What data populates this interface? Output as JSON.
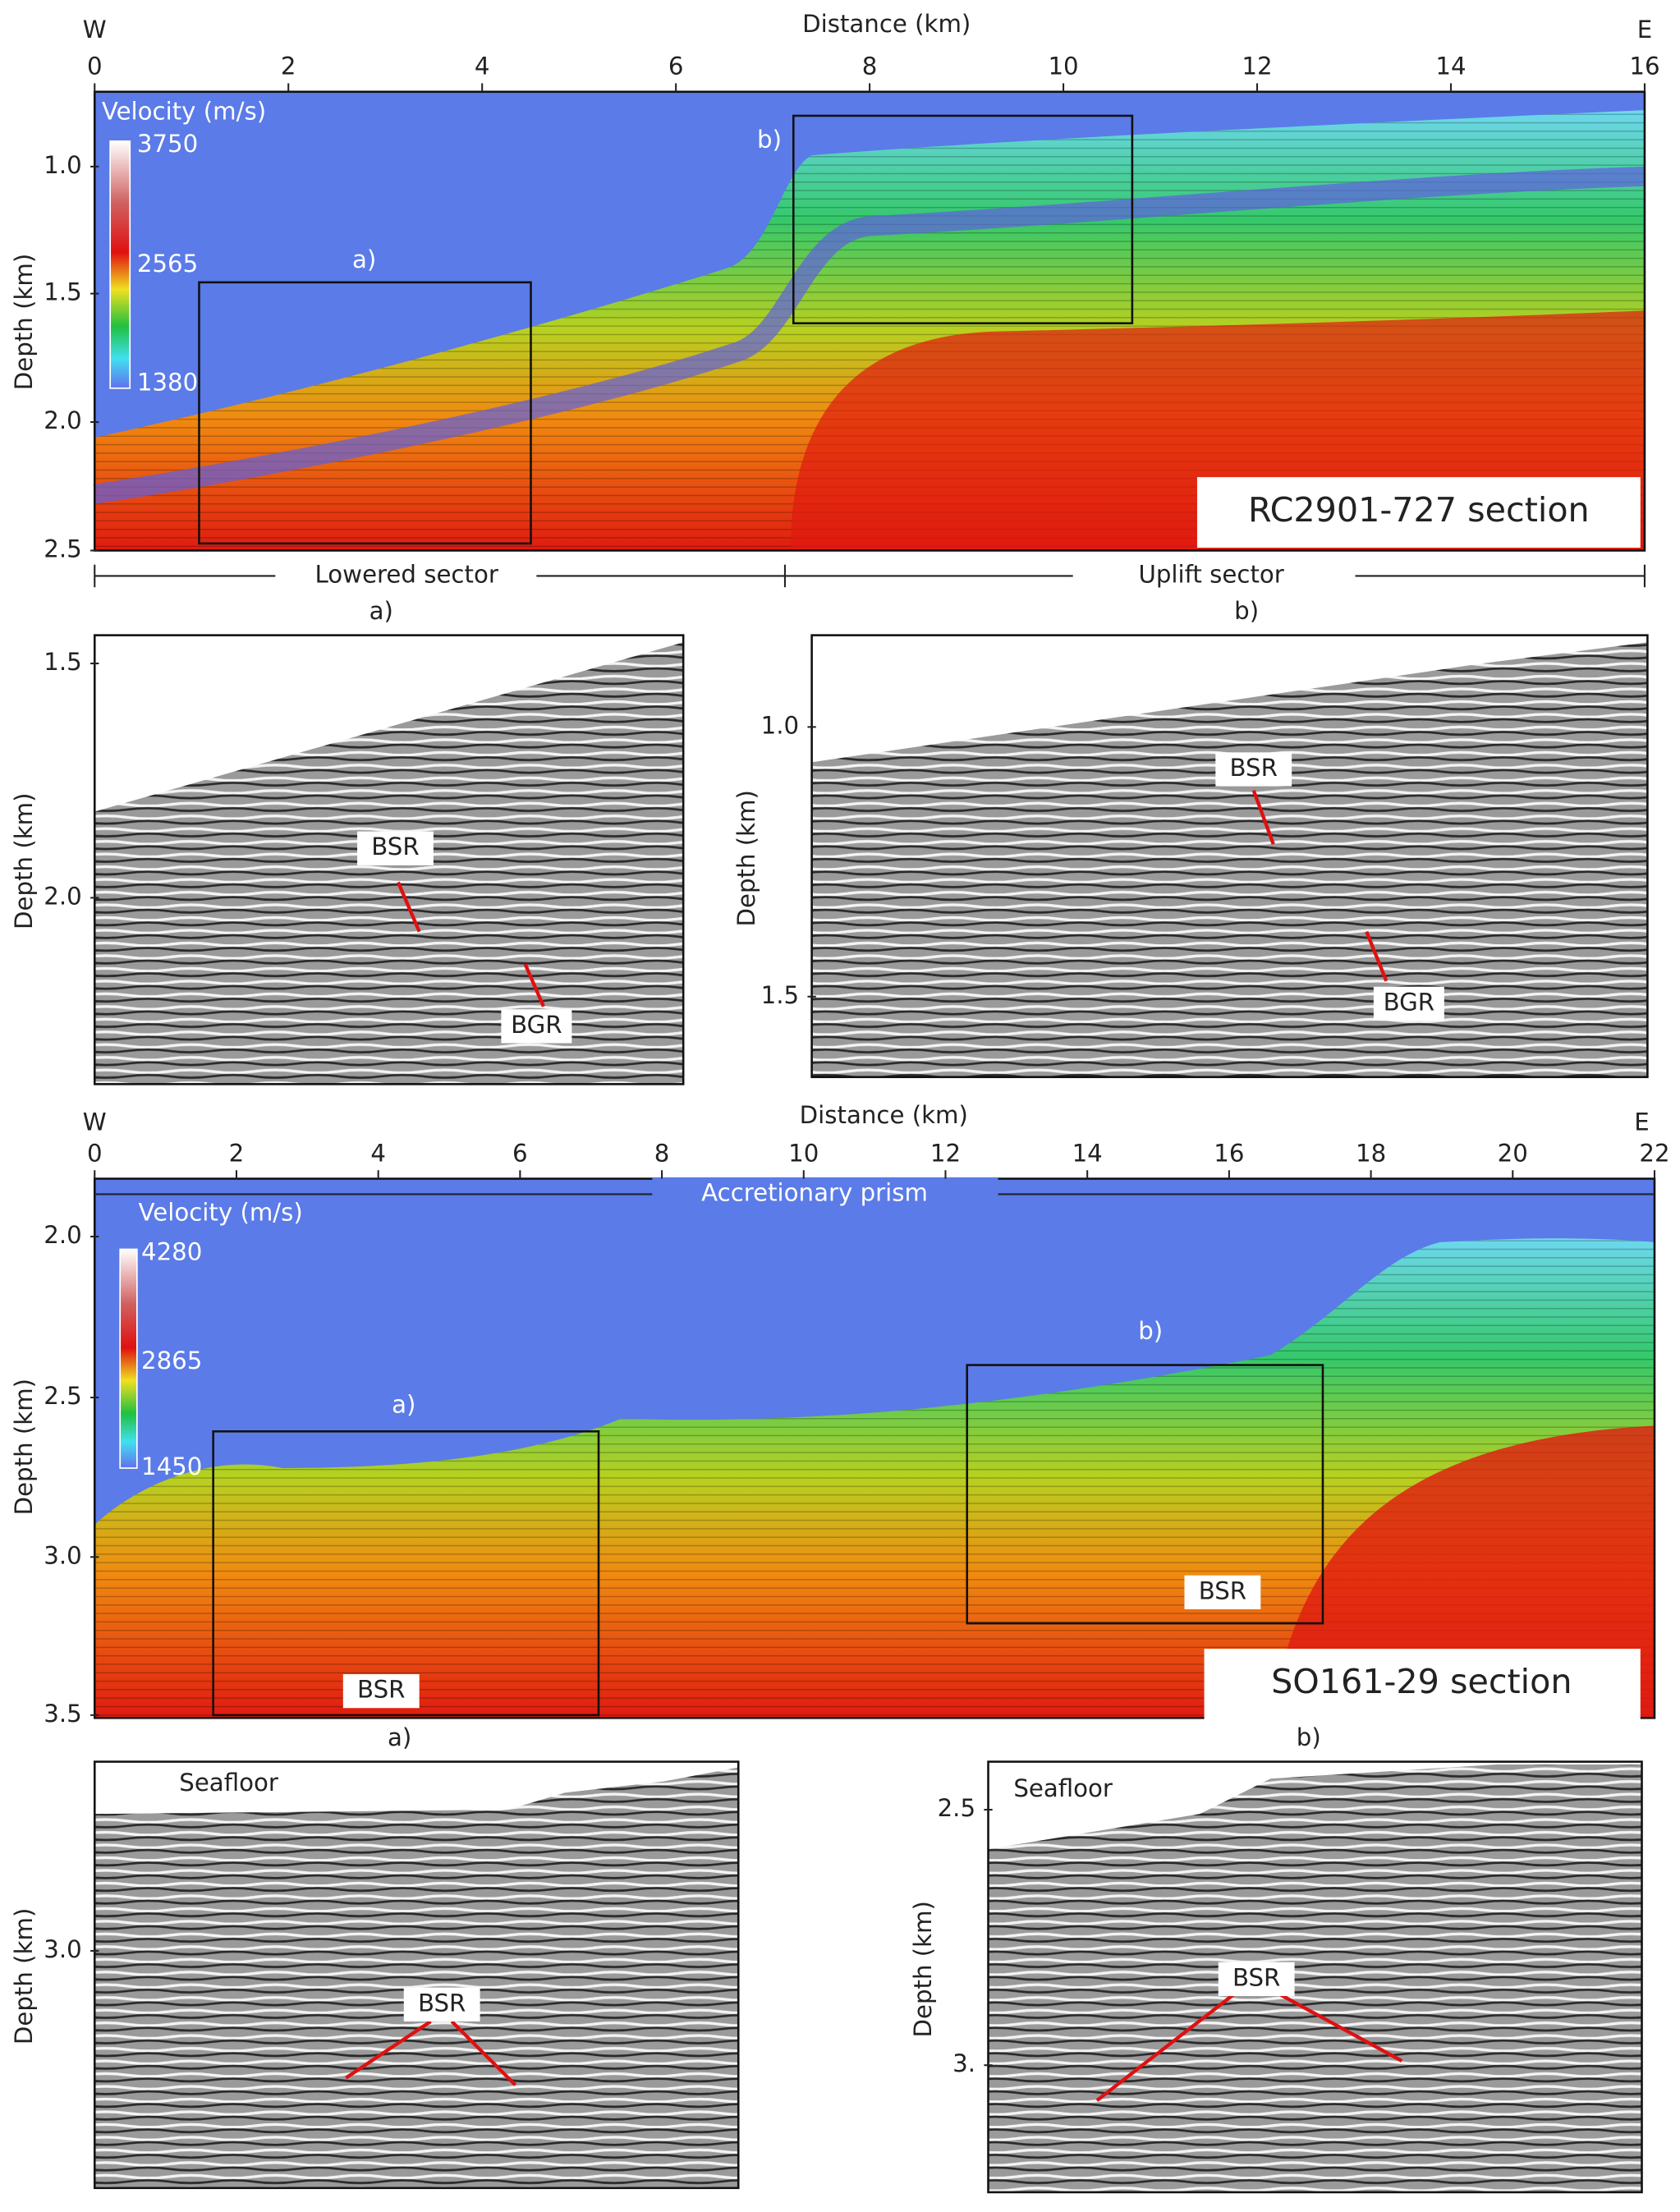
{
  "panel1": {
    "x_axis_title": "Distance (km)",
    "west": "W",
    "east": "E",
    "xticks": [
      "0",
      "2",
      "4",
      "6",
      "8",
      "10",
      "12",
      "14",
      "16"
    ],
    "y_axis_title": "Depth (km)",
    "yticks": [
      "1.0",
      "1.5",
      "2.0",
      "2.5"
    ],
    "colorbar": {
      "title": "Velocity (m/s)",
      "labels": [
        "3750",
        "2565",
        "1380"
      ]
    },
    "box_labels": [
      "a)",
      "b)"
    ],
    "section_label": "RC2901-727 section",
    "sectors": [
      "Lowered sector",
      "Uplift sector"
    ],
    "sub_labels": [
      "a)",
      "b)"
    ]
  },
  "panel1a": {
    "y_axis_title": "Depth (km)",
    "yticks": [
      "1.5",
      "2.0"
    ],
    "annotations": [
      "BSR",
      "BGR"
    ]
  },
  "panel1b": {
    "y_axis_title": "Depth (km)",
    "yticks": [
      "1.0",
      "1.5"
    ],
    "annotations": [
      "BSR",
      "BGR"
    ]
  },
  "panel2": {
    "x_axis_title": "Distance (km)",
    "west": "W",
    "east": "E",
    "xticks": [
      "0",
      "2",
      "4",
      "6",
      "8",
      "10",
      "12",
      "14",
      "16",
      "18",
      "20",
      "22"
    ],
    "y_axis_title": "Depth (km)",
    "yticks": [
      "2.0",
      "2.5",
      "3.0",
      "3.5"
    ],
    "banner": "Accretionary prism",
    "colorbar": {
      "title": "Velocity (m/s)",
      "labels": [
        "4280",
        "2865",
        "1450"
      ]
    },
    "box_labels": [
      "a)",
      "b)"
    ],
    "annotations": [
      "BSR",
      "BSR"
    ],
    "section_label": "SO161-29 section",
    "sub_labels": [
      "a)",
      "b)"
    ]
  },
  "panel2a": {
    "seafloor": "Seafloor",
    "y_axis_title": "Depth (km)",
    "yticks": [
      "3.0"
    ],
    "annotations": [
      "BSR"
    ]
  },
  "panel2b": {
    "seafloor": "Seafloor",
    "y_axis_title": "Depth (km)",
    "yticks": [
      "2.5",
      "3."
    ],
    "annotations": [
      "BSR"
    ]
  }
}
